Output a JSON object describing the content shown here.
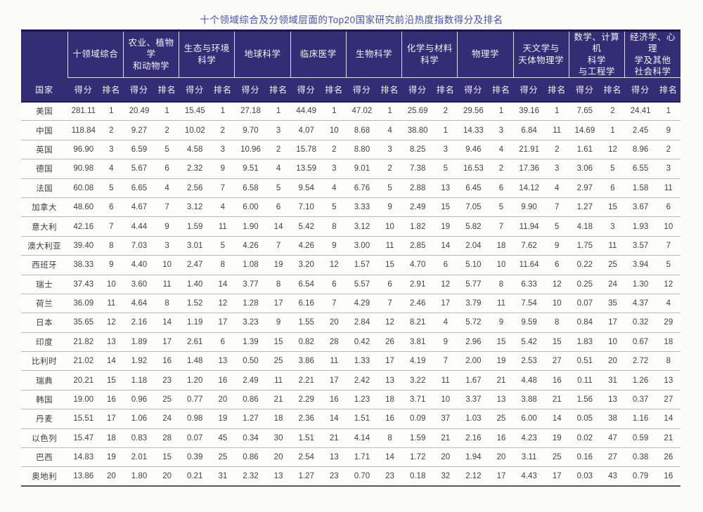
{
  "title": "十个领域综合及分领域层面的Top20国家研究前沿热度指数得分及排名",
  "colors": {
    "header_bg": "#322d75",
    "header_line": "#dcdcec",
    "title_color": "#4452a2"
  },
  "table": {
    "corner_label": "国家",
    "score_label": "得分",
    "rank_label": "排名",
    "groups": [
      "十领域综合",
      "农业、植物学\n和动物学",
      "生态与环境\n科学",
      "地球科学",
      "临床医学",
      "生物科学",
      "化学与材料\n科学",
      "物理学",
      "天文学与\n天体物理学",
      "数学、计算机\n科学\n与工程学",
      "经济学、心理\n学及其他\n社会科学"
    ],
    "rows": [
      {
        "country": "美国",
        "cells": [
          "281.11",
          "1",
          "20.49",
          "1",
          "15.45",
          "1",
          "27.18",
          "1",
          "44.49",
          "1",
          "47.02",
          "1",
          "25.69",
          "2",
          "29.56",
          "1",
          "39.16",
          "1",
          "7.65",
          "2",
          "24.41",
          "1"
        ]
      },
      {
        "country": "中国",
        "cells": [
          "118.84",
          "2",
          "9.27",
          "2",
          "10.02",
          "2",
          "9.70",
          "3",
          "4.07",
          "10",
          "8.68",
          "4",
          "38.80",
          "1",
          "14.33",
          "3",
          "6.84",
          "11",
          "14.69",
          "1",
          "2.45",
          "9"
        ]
      },
      {
        "country": "英国",
        "cells": [
          "96.90",
          "3",
          "6.59",
          "5",
          "4.58",
          "3",
          "10.96",
          "2",
          "15.78",
          "2",
          "8.80",
          "3",
          "8.25",
          "3",
          "9.46",
          "4",
          "21.91",
          "2",
          "1.61",
          "12",
          "8.96",
          "2"
        ]
      },
      {
        "country": "德国",
        "cells": [
          "90.98",
          "4",
          "5.67",
          "6",
          "2.32",
          "9",
          "9.51",
          "4",
          "13.59",
          "3",
          "9.01",
          "2",
          "7.38",
          "5",
          "16.53",
          "2",
          "17.36",
          "3",
          "3.06",
          "5",
          "6.55",
          "3"
        ]
      },
      {
        "country": "法国",
        "cells": [
          "60.08",
          "5",
          "6.65",
          "4",
          "2.56",
          "7",
          "6.58",
          "5",
          "9.54",
          "4",
          "6.76",
          "5",
          "2.88",
          "13",
          "6.45",
          "6",
          "14.12",
          "4",
          "2.97",
          "6",
          "1.58",
          "11"
        ]
      },
      {
        "country": "加拿大",
        "cells": [
          "48.60",
          "6",
          "4.67",
          "7",
          "3.12",
          "4",
          "6.00",
          "6",
          "7.10",
          "5",
          "3.33",
          "9",
          "2.49",
          "15",
          "7.05",
          "5",
          "9.90",
          "7",
          "1.27",
          "15",
          "3.67",
          "6"
        ]
      },
      {
        "country": "意大利",
        "cells": [
          "42.16",
          "7",
          "4.44",
          "9",
          "1.59",
          "11",
          "1.90",
          "14",
          "5.42",
          "8",
          "3.12",
          "10",
          "1.82",
          "19",
          "5.82",
          "7",
          "11.94",
          "5",
          "4.18",
          "3",
          "1.93",
          "10"
        ]
      },
      {
        "country": "澳大利亚",
        "cells": [
          "39.40",
          "8",
          "7.03",
          "3",
          "3.01",
          "5",
          "4.26",
          "7",
          "4.26",
          "9",
          "3.00",
          "11",
          "2.85",
          "14",
          "2.04",
          "18",
          "7.62",
          "9",
          "1.75",
          "11",
          "3.57",
          "7"
        ]
      },
      {
        "country": "西班牙",
        "cells": [
          "38.33",
          "9",
          "4.40",
          "10",
          "2.47",
          "8",
          "1.08",
          "19",
          "3.20",
          "12",
          "1.57",
          "15",
          "4.70",
          "6",
          "5.10",
          "10",
          "11.64",
          "6",
          "0.22",
          "25",
          "3.94",
          "5"
        ]
      },
      {
        "country": "瑞士",
        "cells": [
          "37.43",
          "10",
          "3.60",
          "11",
          "1.40",
          "14",
          "3.77",
          "8",
          "6.54",
          "6",
          "5.57",
          "6",
          "2.91",
          "12",
          "5.77",
          "8",
          "6.33",
          "12",
          "0.25",
          "24",
          "1.30",
          "12"
        ]
      },
      {
        "country": "荷兰",
        "cells": [
          "36.09",
          "11",
          "4.64",
          "8",
          "1.52",
          "12",
          "1.28",
          "17",
          "6.16",
          "7",
          "4.29",
          "7",
          "2.46",
          "17",
          "3.79",
          "11",
          "7.54",
          "10",
          "0.07",
          "35",
          "4.37",
          "4"
        ]
      },
      {
        "country": "日本",
        "cells": [
          "35.65",
          "12",
          "2.16",
          "14",
          "1.19",
          "17",
          "3.23",
          "9",
          "1.55",
          "20",
          "2.84",
          "12",
          "8.21",
          "4",
          "5.72",
          "9",
          "9.59",
          "8",
          "0.84",
          "17",
          "0.32",
          "29"
        ]
      },
      {
        "country": "印度",
        "cells": [
          "21.82",
          "13",
          "1.89",
          "17",
          "2.61",
          "6",
          "1.39",
          "15",
          "0.82",
          "28",
          "0.42",
          "26",
          "3.81",
          "9",
          "2.96",
          "15",
          "5.42",
          "15",
          "1.83",
          "10",
          "0.67",
          "18"
        ]
      },
      {
        "country": "比利时",
        "cells": [
          "21.02",
          "14",
          "1.92",
          "16",
          "1.48",
          "13",
          "0.50",
          "25",
          "3.86",
          "11",
          "1.33",
          "17",
          "4.19",
          "7",
          "2.00",
          "19",
          "2.53",
          "27",
          "0.51",
          "20",
          "2.72",
          "8"
        ]
      },
      {
        "country": "瑞典",
        "cells": [
          "20.21",
          "15",
          "1.18",
          "23",
          "1.20",
          "16",
          "2.49",
          "11",
          "2.21",
          "17",
          "2.42",
          "13",
          "3.22",
          "11",
          "1.67",
          "21",
          "4.48",
          "16",
          "0.11",
          "31",
          "1.26",
          "13"
        ]
      },
      {
        "country": "韩国",
        "cells": [
          "19.00",
          "16",
          "0.96",
          "25",
          "0.77",
          "20",
          "0.86",
          "21",
          "2.29",
          "16",
          "1.23",
          "18",
          "3.71",
          "10",
          "3.37",
          "13",
          "3.88",
          "21",
          "1.56",
          "13",
          "0.37",
          "27"
        ]
      },
      {
        "country": "丹麦",
        "cells": [
          "15.51",
          "17",
          "1.06",
          "24",
          "0.98",
          "19",
          "1.27",
          "18",
          "2.36",
          "14",
          "1.51",
          "16",
          "0.09",
          "37",
          "1.03",
          "25",
          "6.00",
          "14",
          "0.05",
          "38",
          "1.16",
          "14"
        ]
      },
      {
        "country": "以色列",
        "cells": [
          "15.47",
          "18",
          "0.83",
          "28",
          "0.07",
          "45",
          "0.34",
          "30",
          "1.51",
          "21",
          "4.14",
          "8",
          "1.59",
          "21",
          "2.16",
          "16",
          "4.23",
          "19",
          "0.02",
          "47",
          "0.59",
          "21"
        ]
      },
      {
        "country": "巴西",
        "cells": [
          "14.83",
          "19",
          "2.01",
          "15",
          "0.39",
          "25",
          "0.86",
          "20",
          "2.54",
          "13",
          "1.71",
          "14",
          "1.72",
          "20",
          "1.94",
          "20",
          "3.11",
          "25",
          "0.16",
          "27",
          "0.38",
          "26"
        ]
      },
      {
        "country": "奥地利",
        "cells": [
          "13.86",
          "20",
          "1.80",
          "20",
          "0.21",
          "31",
          "2.32",
          "13",
          "1.27",
          "23",
          "0.70",
          "23",
          "0.18",
          "32",
          "2.12",
          "17",
          "4.43",
          "17",
          "0.03",
          "43",
          "0.79",
          "16"
        ]
      }
    ]
  }
}
